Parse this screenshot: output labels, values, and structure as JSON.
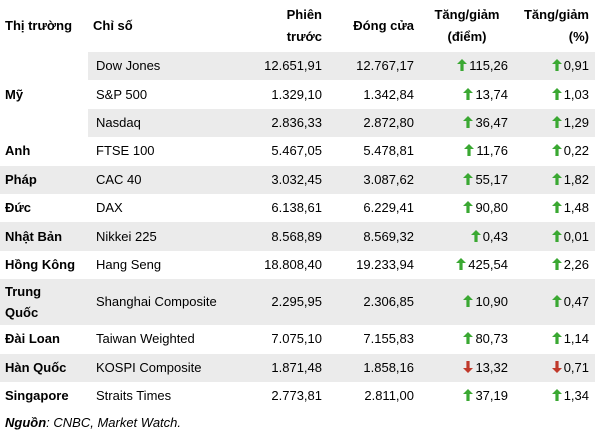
{
  "table": {
    "headers": {
      "market": "Thị trường",
      "index": "Chỉ số",
      "prev_line1": "Phiên",
      "prev_line2": "trước",
      "close": "Đóng cửa",
      "chg_pts_line1": "Tăng/giảm",
      "chg_pts_line2": "(điểm)",
      "chg_pct_line1": "Tăng/giảm",
      "chg_pct_line2": "(%)"
    },
    "rows": [
      {
        "country": "Mỹ",
        "index": "Dow Jones",
        "prev": "12.651,91",
        "close": "12.767,17",
        "chg_pts": "115,26",
        "chg_pct": "0,91",
        "direction": "up"
      },
      {
        "country": "",
        "index": "S&P 500",
        "prev": "1.329,10",
        "close": "1.342,84",
        "chg_pts": "13,74",
        "chg_pct": "1,03",
        "direction": "up"
      },
      {
        "country": "",
        "index": "Nasdaq",
        "prev": "2.836,33",
        "close": "2.872,80",
        "chg_pts": "36,47",
        "chg_pct": "1,29",
        "direction": "up"
      },
      {
        "country": "Anh",
        "index": "FTSE 100",
        "prev": "5.467,05",
        "close": "5.478,81",
        "chg_pts": "11,76",
        "chg_pct": "0,22",
        "direction": "up"
      },
      {
        "country": "Pháp",
        "index": "CAC 40",
        "prev": "3.032,45",
        "close": "3.087,62",
        "chg_pts": "55,17",
        "chg_pct": "1,82",
        "direction": "up"
      },
      {
        "country": "Đức",
        "index": "DAX",
        "prev": "6.138,61",
        "close": "6.229,41",
        "chg_pts": "90,80",
        "chg_pct": "1,48",
        "direction": "up"
      },
      {
        "country": "Nhật Bản",
        "index": "Nikkei 225",
        "prev": "8.568,89",
        "close": "8.569,32",
        "chg_pts": "0,43",
        "chg_pct": "0,01",
        "direction": "up"
      },
      {
        "country": "Hồng Kông",
        "index": "Hang Seng",
        "prev": "18.808,40",
        "close": "19.233,94",
        "chg_pts": "425,54",
        "chg_pct": "2,26",
        "direction": "up"
      },
      {
        "country": "Trung Quốc",
        "country_line1": "Trung",
        "country_line2": "Quốc",
        "index": "Shanghai Composite",
        "prev": "2.295,95",
        "close": "2.306,85",
        "chg_pts": "10,90",
        "chg_pct": "0,47",
        "direction": "up"
      },
      {
        "country": "Đài Loan",
        "index": "Taiwan Weighted",
        "prev": "7.075,10",
        "close": "7.155,83",
        "chg_pts": "80,73",
        "chg_pct": "1,14",
        "direction": "up"
      },
      {
        "country": "Hàn Quốc",
        "index": "KOSPI Composite",
        "prev": "1.871,48",
        "close": "1.858,16",
        "chg_pts": "13,32",
        "chg_pct": "0,71",
        "direction": "down"
      },
      {
        "country": "Singapore",
        "index": "Straits Times",
        "prev": "2.773,81",
        "close": "2.811,00",
        "chg_pts": "37,19",
        "chg_pct": "1,34",
        "direction": "up"
      }
    ]
  },
  "source": {
    "label": "Nguồn",
    "text": ": CNBC, Market Watch."
  },
  "colors": {
    "up_arrow": "#3aa832",
    "down_arrow": "#c0392b",
    "stripe": "#ebebeb"
  },
  "icons": {
    "up": "arrow-up-icon",
    "down": "arrow-down-icon"
  }
}
